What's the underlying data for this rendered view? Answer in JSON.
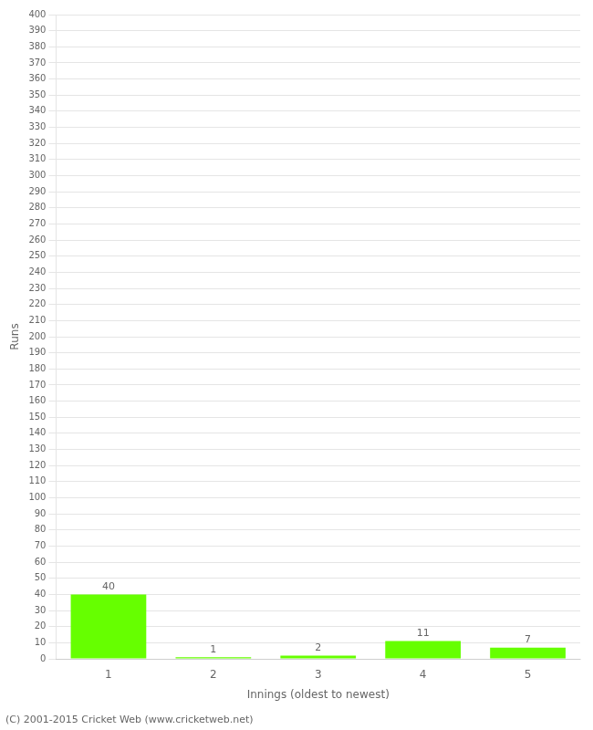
{
  "chart_data": {
    "type": "bar",
    "categories": [
      1,
      2,
      3,
      4,
      5
    ],
    "values": [
      40,
      1,
      2,
      11,
      7
    ],
    "color": "#66ff00",
    "xlabel": "Innings (oldest to newest)",
    "ylabel": "Runs",
    "ylim": [
      0,
      400
    ],
    "yticks": [
      0,
      10,
      20,
      30,
      40,
      50,
      60,
      70,
      80,
      90,
      100,
      110,
      120,
      130,
      140,
      150,
      160,
      170,
      180,
      190,
      200,
      210,
      220,
      230,
      240,
      250,
      260,
      270,
      280,
      290,
      300,
      310,
      320,
      330,
      340,
      350,
      360,
      370,
      380,
      390,
      400
    ],
    "grid": true,
    "data_labels": true,
    "annotations": [
      "(C) 2001-2015 Cricket Web (www.cricketweb.net)"
    ]
  }
}
